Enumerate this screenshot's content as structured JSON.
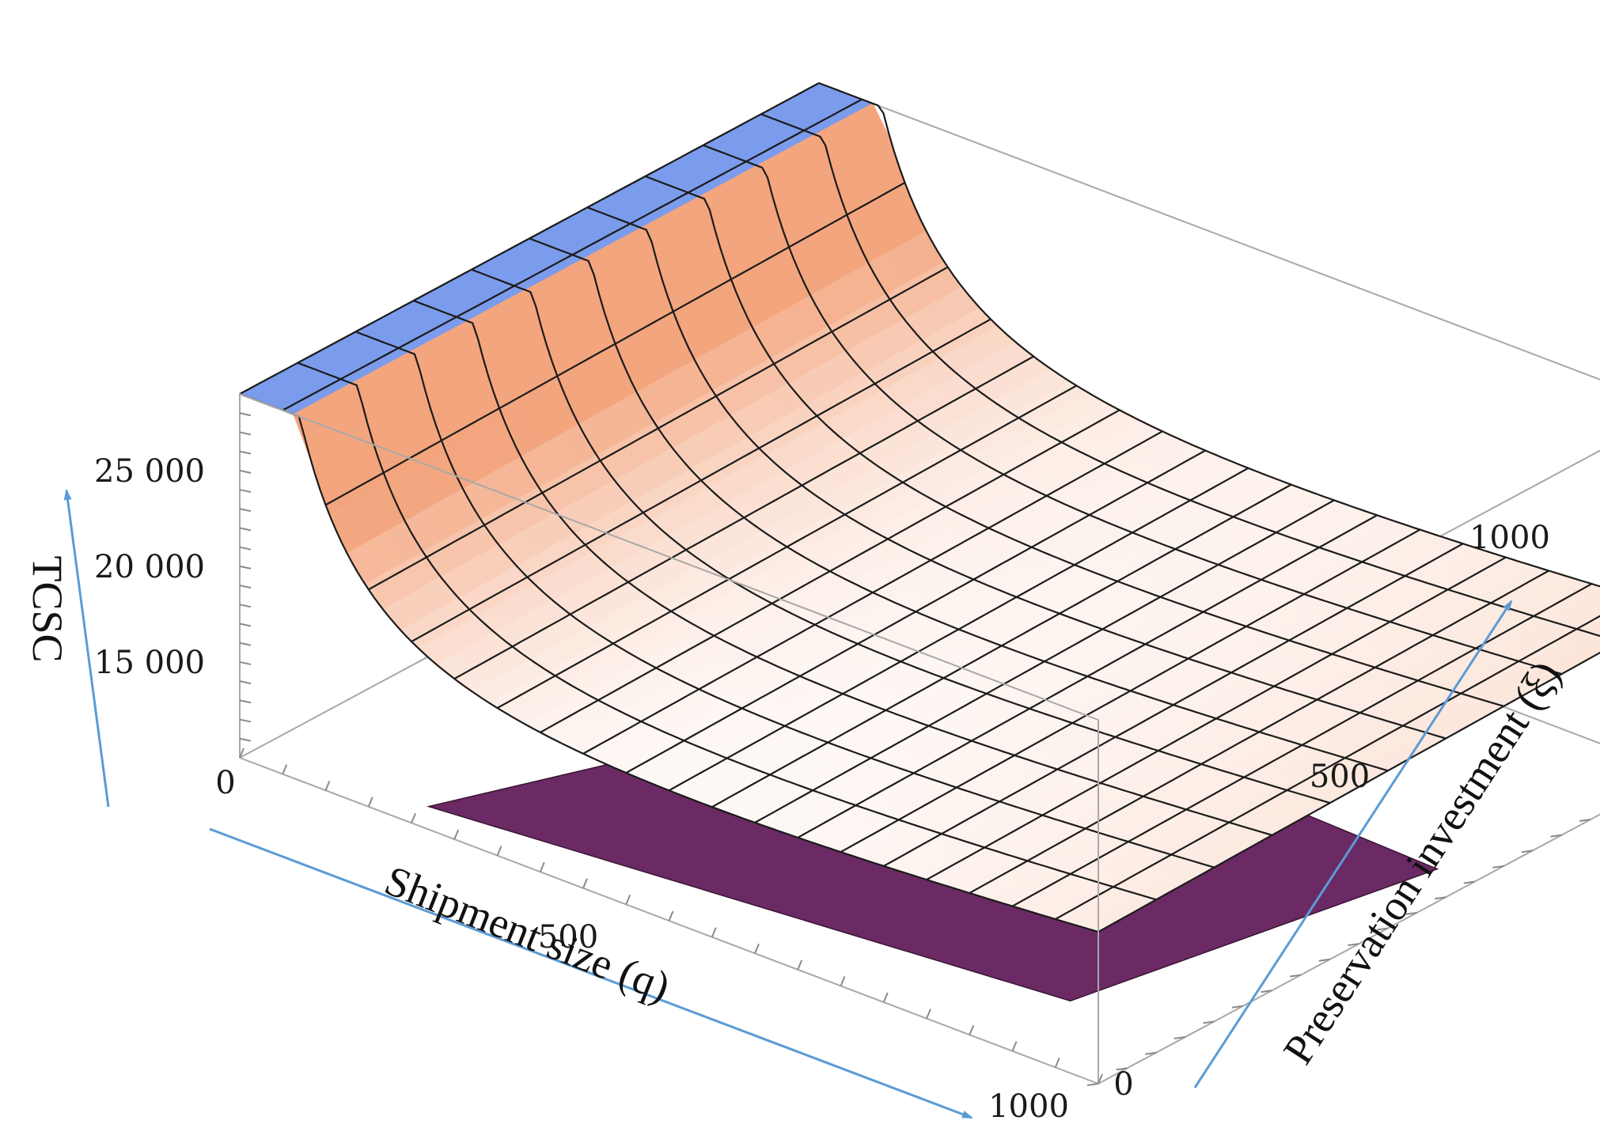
{
  "chart_data": {
    "type": "surface3d",
    "title": "",
    "xlabel": "Shipment size (q)",
    "ylabel": "Preservation investment (ξ)",
    "zlabel": "TCSC",
    "xlim": [
      0,
      1000
    ],
    "ylim": [
      0,
      1000
    ],
    "zlim": [
      10000,
      29000
    ],
    "x_ticks": [
      "0",
      "500",
      "1000"
    ],
    "y_ticks": [
      "0",
      "500",
      "1000"
    ],
    "z_ticks": [
      "15 000",
      "20 000",
      "25 000"
    ],
    "surface": {
      "description_model": "TCSC decreases steeply as shipment size grows from 0, reaching a minimum near 11000 at small shipment sizes, then rises slowly with larger shipment sizes; surface values are clipped at the top of the box near q = 0",
      "grid_x": [
        0,
        50,
        100,
        150,
        200,
        250,
        300,
        350,
        400,
        450,
        500,
        550,
        600,
        650,
        700,
        750,
        800,
        850,
        900,
        950,
        1000
      ],
      "grid_y": [
        0,
        100,
        200,
        300,
        400,
        500,
        600,
        700,
        800,
        900,
        1000
      ],
      "z_clip_max": 29000,
      "z_min_approx": 11000
    },
    "colors": {
      "high": "#f3a57e",
      "mid": "#ffffff",
      "low": "#7ab2f0",
      "clip_cap": "#7b9cec",
      "underside": "#6b2a63",
      "mesh": "#1b1b1b",
      "axis_arrow": "#5b9bd5",
      "box": "#a8a8a8"
    },
    "grid": false,
    "legend": "none"
  }
}
